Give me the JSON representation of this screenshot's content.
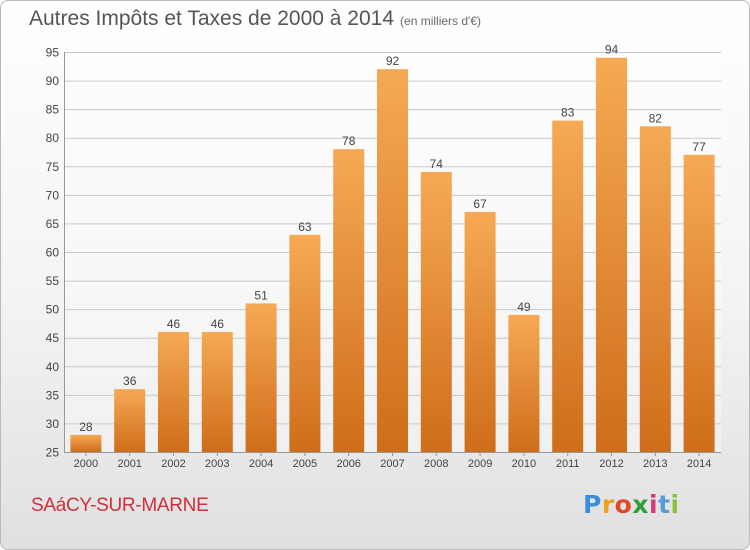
{
  "header": {
    "title": "Autres Impôts et Taxes de 2000 à 2014",
    "unit": "(en milliers d'€)"
  },
  "footer": {
    "commune": "SAáCY-SUR-MARNE",
    "logo_letters": [
      "P",
      "r",
      "o",
      "x",
      "i",
      "t",
      "i"
    ],
    "logo_colors": [
      "#3a8fd8",
      "#e8a21c",
      "#e04a2a",
      "#2f9e3a",
      "#d13a7a",
      "#5b9bd5",
      "#88c13e"
    ]
  },
  "colors": {
    "bar_top": "#f6a954",
    "bar_bottom": "#cf6d1a",
    "grid": "#c8c8c8",
    "axis_text": "#444444"
  },
  "chart_data": {
    "type": "bar",
    "title": "Autres Impôts et Taxes de 2000 à 2014",
    "subtitle": "(en milliers d'€)",
    "xlabel": "",
    "ylabel": "",
    "categories": [
      "2000",
      "2001",
      "2002",
      "2003",
      "2004",
      "2005",
      "2006",
      "2007",
      "2008",
      "2009",
      "2010",
      "2011",
      "2012",
      "2013",
      "2014"
    ],
    "values": [
      28,
      36,
      46,
      46,
      51,
      63,
      78,
      92,
      74,
      67,
      49,
      83,
      94,
      82,
      77
    ],
    "ylim": [
      25,
      95
    ],
    "yticks": [
      25,
      30,
      35,
      40,
      45,
      50,
      55,
      60,
      65,
      70,
      75,
      80,
      85,
      90,
      95
    ],
    "grid": true,
    "data_labels": true
  }
}
